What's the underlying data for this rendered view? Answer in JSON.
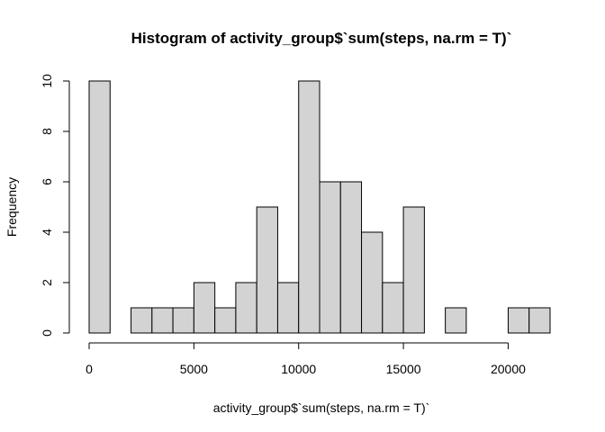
{
  "chart_data": {
    "type": "bar",
    "title": "Histogram of activity_group$`sum(steps, na.rm = T)`",
    "xlabel": "activity_group$`sum(steps, na.rm = T)`",
    "ylabel": "Frequency",
    "bin_width": 1000,
    "bins": [
      {
        "start": 0,
        "end": 1000,
        "count": 10
      },
      {
        "start": 1000,
        "end": 2000,
        "count": 0
      },
      {
        "start": 2000,
        "end": 3000,
        "count": 1
      },
      {
        "start": 3000,
        "end": 4000,
        "count": 1
      },
      {
        "start": 4000,
        "end": 5000,
        "count": 1
      },
      {
        "start": 5000,
        "end": 6000,
        "count": 2
      },
      {
        "start": 6000,
        "end": 7000,
        "count": 1
      },
      {
        "start": 7000,
        "end": 8000,
        "count": 2
      },
      {
        "start": 8000,
        "end": 9000,
        "count": 5
      },
      {
        "start": 9000,
        "end": 10000,
        "count": 2
      },
      {
        "start": 10000,
        "end": 11000,
        "count": 10
      },
      {
        "start": 11000,
        "end": 12000,
        "count": 6
      },
      {
        "start": 12000,
        "end": 13000,
        "count": 6
      },
      {
        "start": 13000,
        "end": 14000,
        "count": 4
      },
      {
        "start": 14000,
        "end": 15000,
        "count": 2
      },
      {
        "start": 15000,
        "end": 16000,
        "count": 5
      },
      {
        "start": 16000,
        "end": 17000,
        "count": 0
      },
      {
        "start": 17000,
        "end": 18000,
        "count": 1
      },
      {
        "start": 18000,
        "end": 19000,
        "count": 0
      },
      {
        "start": 19000,
        "end": 20000,
        "count": 0
      },
      {
        "start": 20000,
        "end": 21000,
        "count": 1
      },
      {
        "start": 21000,
        "end": 22000,
        "count": 1
      }
    ],
    "x_ticks": [
      0,
      5000,
      10000,
      15000,
      20000
    ],
    "y_ticks": [
      0,
      2,
      4,
      6,
      8,
      10
    ],
    "xlim": [
      0,
      22000
    ],
    "ylim": [
      0,
      10
    ],
    "bar_color": "#d3d3d3",
    "grid": false
  }
}
